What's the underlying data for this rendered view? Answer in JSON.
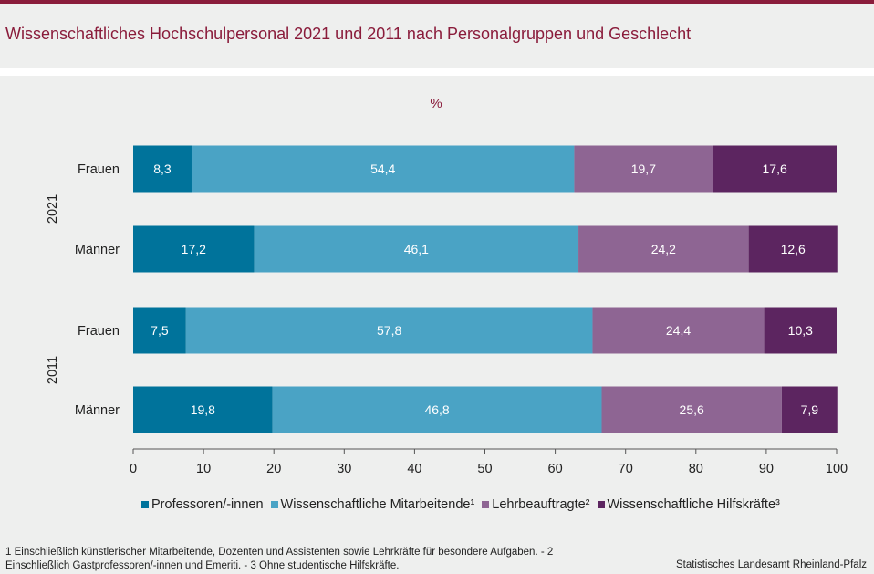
{
  "header": {
    "title": "Wissenschaftliches Hochschulpersonal 2021 und 2011 nach Personalgruppen und Geschlecht"
  },
  "chart_data": {
    "type": "bar",
    "orientation": "horizontal",
    "stacked": true,
    "unit_label": "%",
    "groups": [
      {
        "label": "2021",
        "rows": [
          "Frauen",
          "Männer"
        ]
      },
      {
        "label": "2011",
        "rows": [
          "Frauen",
          "Männer"
        ]
      }
    ],
    "categories": [
      "Frauen",
      "Männer",
      "Frauen",
      "Männer"
    ],
    "series": [
      {
        "name": "Professoren/-innen",
        "color": "#00739b",
        "values": [
          8.3,
          17.2,
          7.5,
          19.8
        ],
        "labels": [
          "8,3",
          "17,2",
          "7,5",
          "19,8"
        ]
      },
      {
        "name": "Wissenschaftliche Mitarbeitende¹",
        "color": "#4aa3c5",
        "values": [
          54.4,
          46.1,
          57.8,
          46.8
        ],
        "labels": [
          "54,4",
          "46,1",
          "57,8",
          "46,8"
        ]
      },
      {
        "name": "Lehrbeauftragte²",
        "color": "#8e6593",
        "values": [
          19.7,
          24.2,
          24.4,
          25.6
        ],
        "labels": [
          "19,7",
          "24,2",
          "24,4",
          "25,6"
        ]
      },
      {
        "name": "Wissenschaftliche Hilfskräfte³",
        "color": "#5c2560",
        "values": [
          17.6,
          12.6,
          10.3,
          7.9
        ],
        "labels": [
          "17,6",
          "12,6",
          "10,3",
          "7,9"
        ]
      }
    ],
    "xlim": [
      0,
      100
    ],
    "xticks": [
      0,
      10,
      20,
      30,
      40,
      50,
      60,
      70,
      80,
      90,
      100
    ],
    "legend_position": "bottom"
  },
  "footer": {
    "footnote": "1 Einschließlich künstlerischer Mitarbeitende, Dozenten und Assistenten sowie Lehrkräfte für besondere Aufgaben. - 2 Einschließlich Gastprofessoren/-innen  und Emeriti. - 3 Ohne studentische Hilfskräfte.",
    "source": "Statistisches Landesamt Rheinland-Pfalz"
  }
}
